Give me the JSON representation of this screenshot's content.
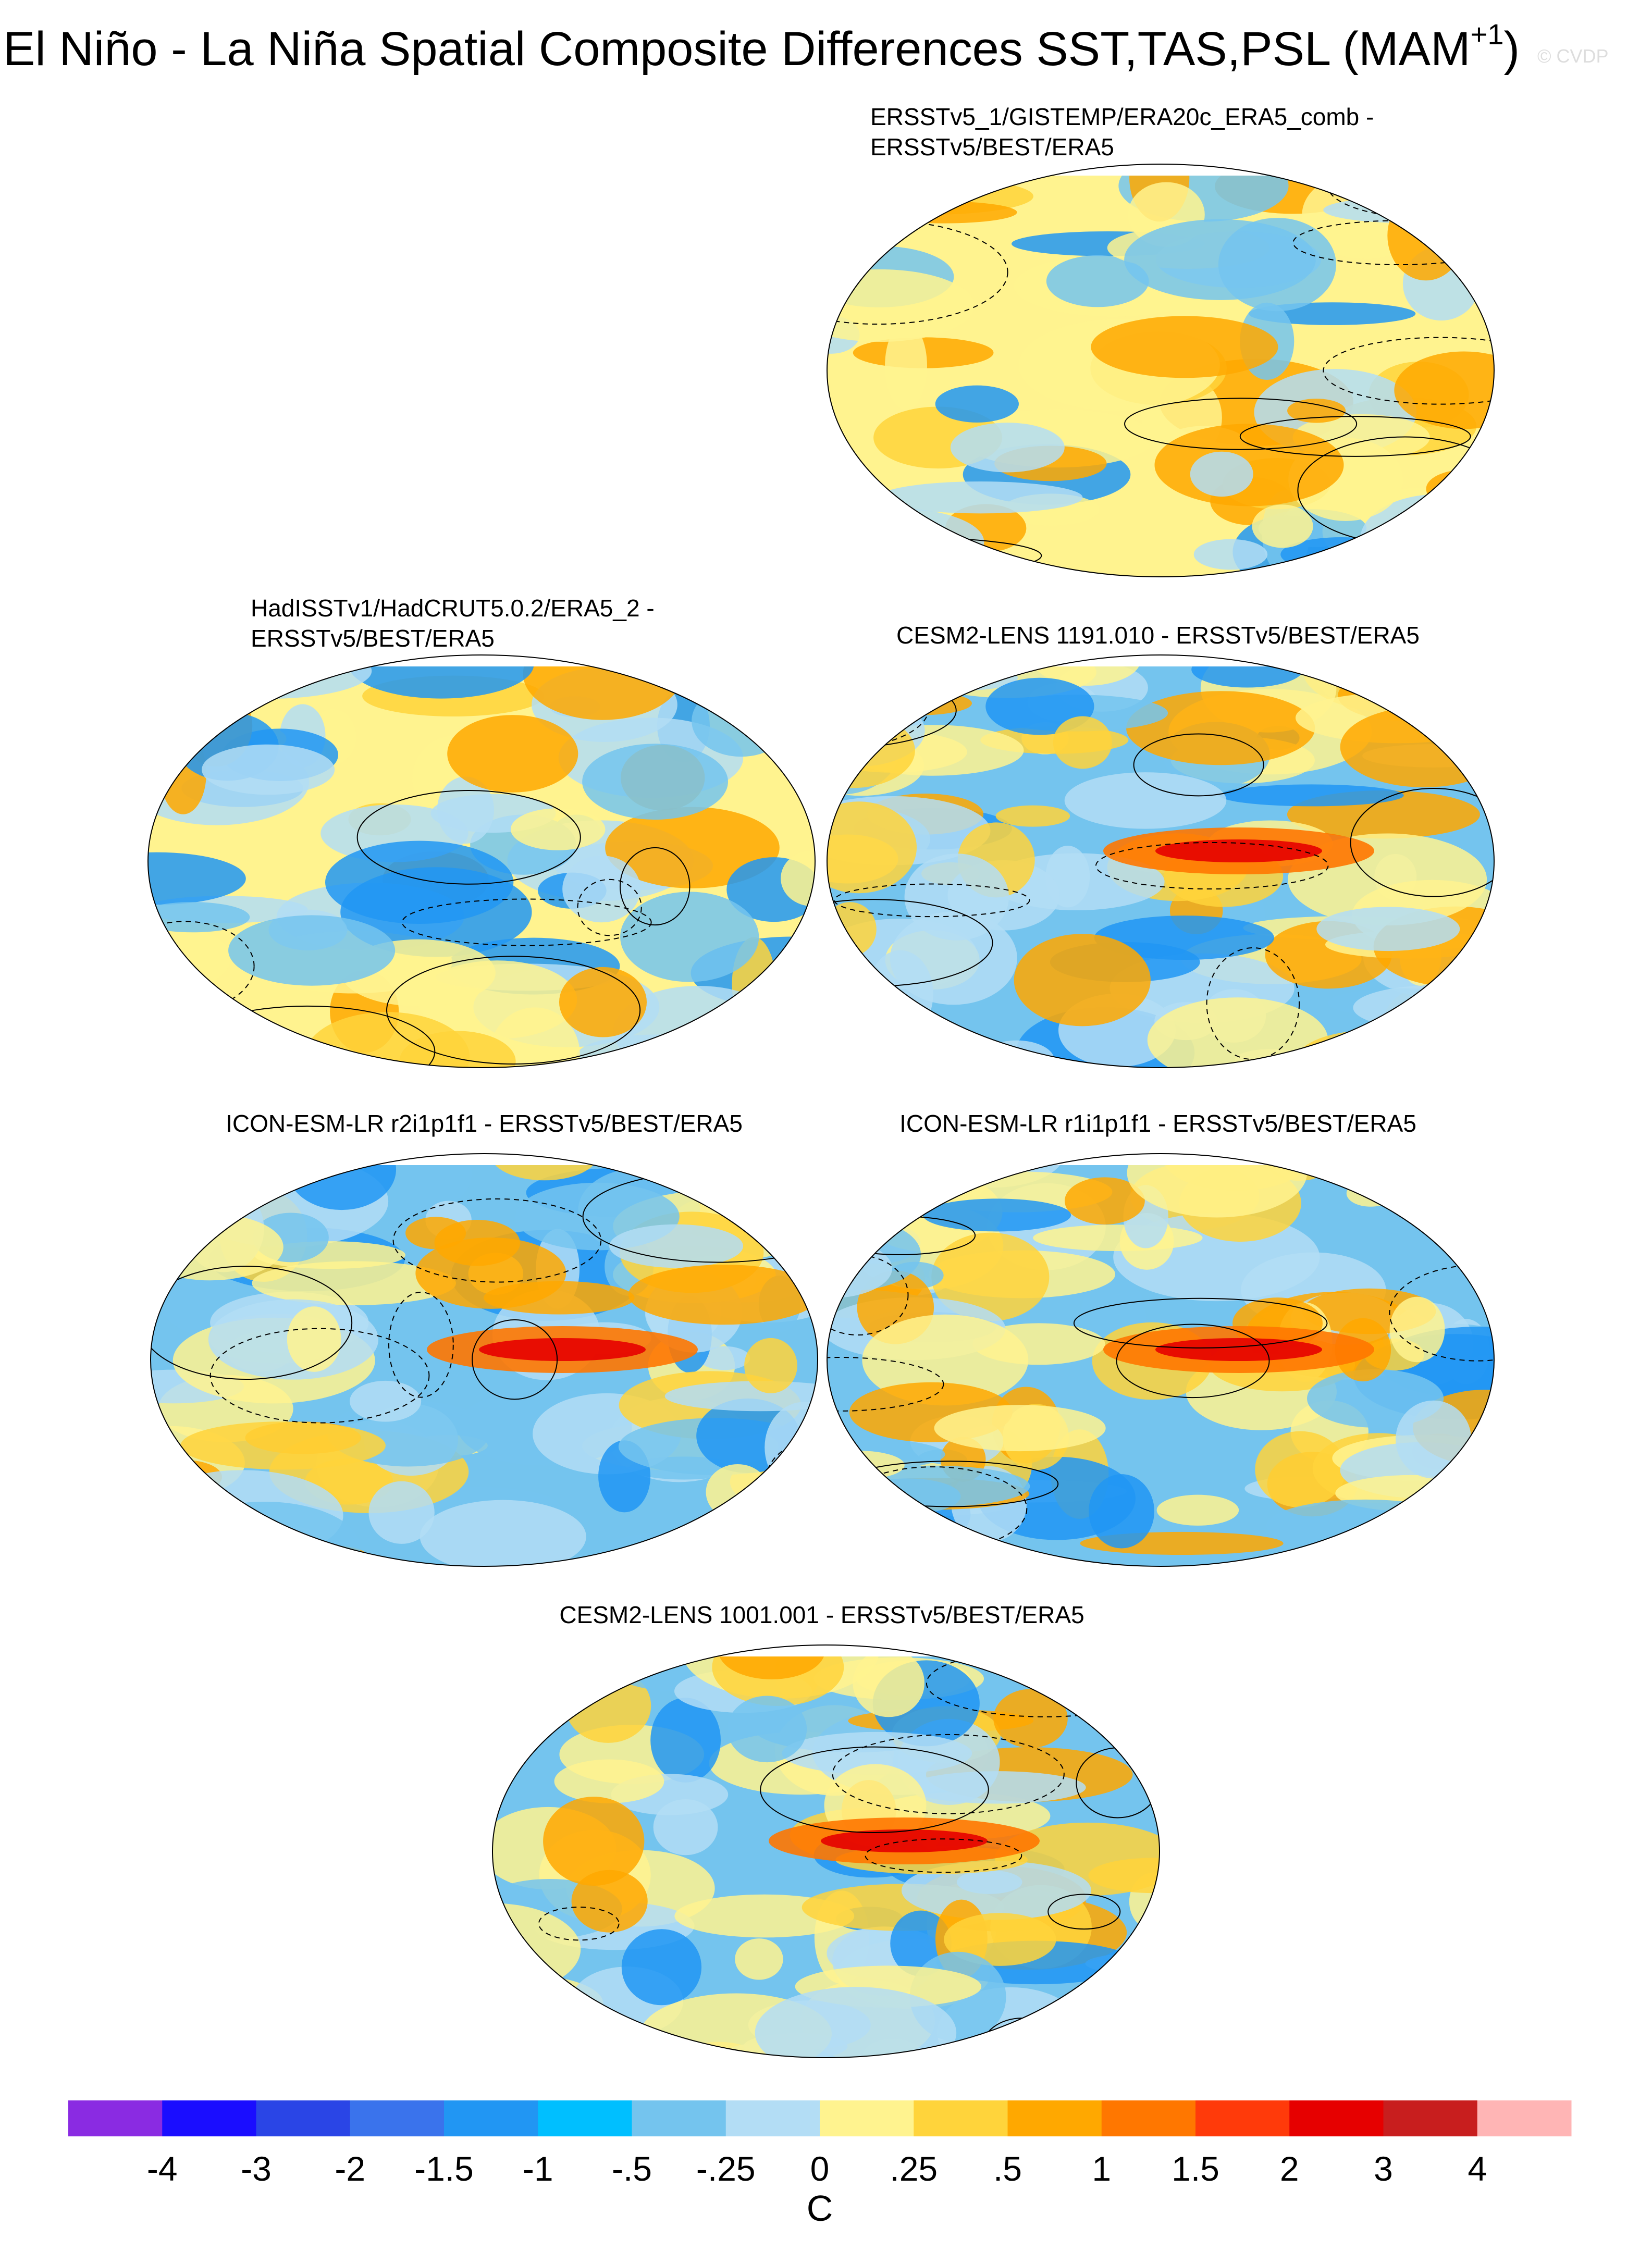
{
  "title": "El Niño - La Niña Spatial Composite Differences SST,TAS,PSL (MAM",
  "title_superscript": "+1",
  "title_end": ")",
  "watermark": "© CVDP",
  "panels": [
    {
      "title_lines": [
        "ERSSTv5_1/GISTEMP/ERA20c_ERA5_comb -",
        "ERSSTv5/BEST/ERA5"
      ]
    },
    {
      "title_lines": [
        "HadISSTv1/HadCRUT5.0.2/ERA5_2 -",
        "ERSSTv5/BEST/ERA5"
      ]
    },
    {
      "title_lines": [
        "CESM2-LENS 1191.010 - ERSSTv5/BEST/ERA5"
      ]
    },
    {
      "title_lines": [
        "ICON-ESM-LR r2i1p1f1 - ERSSTv5/BEST/ERA5"
      ]
    },
    {
      "title_lines": [
        "ICON-ESM-LR r1i1p1f1 - ERSSTv5/BEST/ERA5"
      ]
    },
    {
      "title_lines": [
        "CESM2-LENS 1001.001 - ERSSTv5/BEST/ERA5"
      ]
    }
  ],
  "colorbar": {
    "colors": [
      "#8a2be2",
      "#1a0dff",
      "#2a45e6",
      "#3a73ec",
      "#2196f3",
      "#00bfff",
      "#74c4ee",
      "#b3ddf5",
      "#fff38f",
      "#ffd43b",
      "#ffa800",
      "#ff7700",
      "#ff3a0a",
      "#e60000",
      "#c81e1e",
      "#ffb5b5"
    ],
    "labels": [
      "-4",
      "-3",
      "-2",
      "-1.5",
      "-1",
      "-.5",
      "-.25",
      "0",
      ".25",
      ".5",
      "1",
      "1.5",
      "2",
      "3",
      "4"
    ],
    "unit": "C"
  }
}
